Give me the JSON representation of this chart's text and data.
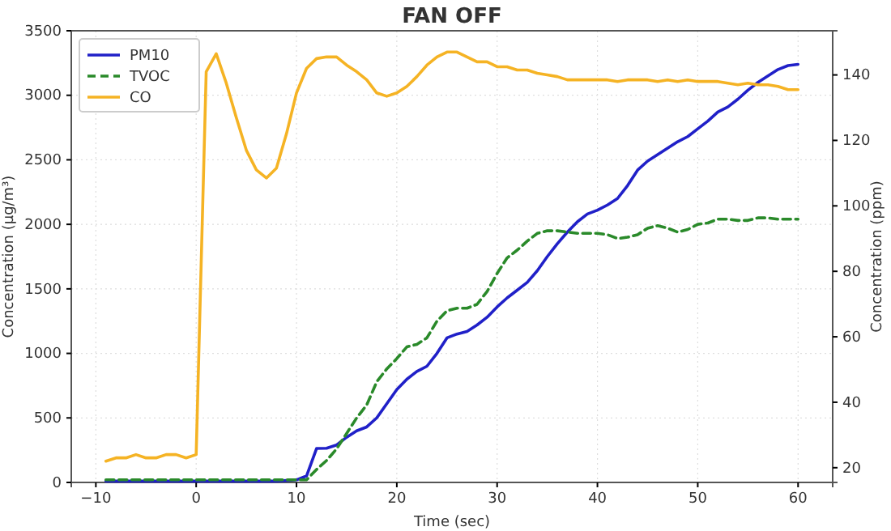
{
  "chart_data": {
    "type": "line",
    "title": "FAN OFF",
    "xlabel": "Time (sec)",
    "ylabel": "Concentration (µg/m³)",
    "y2label": "Concentration (ppm)",
    "x": [
      -9,
      -8,
      -7,
      -6,
      -5,
      -4,
      -3,
      -2,
      -1,
      0,
      1,
      2,
      3,
      4,
      5,
      6,
      7,
      8,
      9,
      10,
      11,
      12,
      13,
      14,
      15,
      16,
      17,
      18,
      19,
      20,
      21,
      22,
      23,
      24,
      25,
      26,
      27,
      28,
      29,
      30,
      31,
      32,
      33,
      34,
      35,
      36,
      37,
      38,
      39,
      40,
      41,
      42,
      43,
      44,
      45,
      46,
      47,
      48,
      49,
      50,
      51,
      52,
      53,
      54,
      55,
      56,
      57,
      58,
      59,
      60
    ],
    "series": [
      {
        "name": "PM10",
        "color": "#2020c8",
        "line_style": "solid",
        "values": [
          10,
          10,
          10,
          10,
          10,
          10,
          10,
          10,
          10,
          10,
          10,
          10,
          10,
          10,
          10,
          10,
          10,
          10,
          15,
          20,
          50,
          263,
          265,
          290,
          350,
          400,
          430,
          500,
          610,
          720,
          800,
          860,
          900,
          1000,
          1120,
          1150,
          1170,
          1220,
          1280,
          1360,
          1430,
          1490,
          1550,
          1640,
          1750,
          1850,
          1940,
          2020,
          2080,
          2110,
          2150,
          2200,
          2300,
          2420,
          2490,
          2540,
          2590,
          2640,
          2680,
          2740,
          2800,
          2870,
          2910,
          2970,
          3040,
          3100,
          3150,
          3200,
          3230,
          3240
        ]
      },
      {
        "name": "TVOC",
        "color": "#2a8a2a",
        "line_style": "dashed",
        "values": [
          20,
          20,
          20,
          20,
          20,
          20,
          20,
          20,
          20,
          20,
          20,
          20,
          20,
          20,
          20,
          20,
          20,
          20,
          20,
          20,
          20,
          100,
          170,
          260,
          380,
          500,
          600,
          780,
          880,
          960,
          1050,
          1070,
          1120,
          1250,
          1330,
          1350,
          1350,
          1380,
          1480,
          1620,
          1740,
          1800,
          1870,
          1930,
          1950,
          1950,
          1940,
          1930,
          1930,
          1930,
          1920,
          1890,
          1900,
          1920,
          1970,
          1990,
          1970,
          1940,
          1960,
          2000,
          2010,
          2040,
          2040,
          2030,
          2030,
          2050,
          2050,
          2040,
          2040,
          2040
        ]
      },
      {
        "name": "CO",
        "color": "#f5b324",
        "line_style": "solid",
        "axis": "y2",
        "values": [
          22,
          23,
          23,
          24,
          23,
          23,
          24,
          24,
          23,
          24,
          141,
          146.5,
          137.5,
          127,
          117,
          111,
          108.5,
          111.5,
          122,
          134.5,
          142,
          145,
          145.5,
          145.5,
          143,
          141,
          138.5,
          134.5,
          133.5,
          134.5,
          136.5,
          139.5,
          143,
          145.5,
          147,
          147,
          145.5,
          144,
          144,
          142.5,
          142.5,
          141.5,
          141.5,
          140.5,
          140,
          139.5,
          138.5,
          138.5,
          138.5,
          138.5,
          138.5,
          138,
          138.5,
          138.5,
          138.5,
          138,
          138.5,
          138,
          138.5,
          138,
          138,
          138,
          137.5,
          137,
          137.5,
          137,
          137,
          136.5,
          135.5,
          135.5
        ]
      }
    ],
    "xlim": [
      -12.45,
      63.45
    ],
    "xticks": [
      -10,
      0,
      10,
      20,
      30,
      40,
      50,
      60
    ],
    "ylim": [
      0,
      3500
    ],
    "yticks": [
      0,
      500,
      1000,
      1500,
      2000,
      2500,
      3000,
      3500
    ],
    "y2lim": [
      15.5,
      153.5
    ],
    "y2ticks": [
      20,
      40,
      60,
      80,
      100,
      120,
      140
    ],
    "grid": true,
    "legend": "top left"
  }
}
